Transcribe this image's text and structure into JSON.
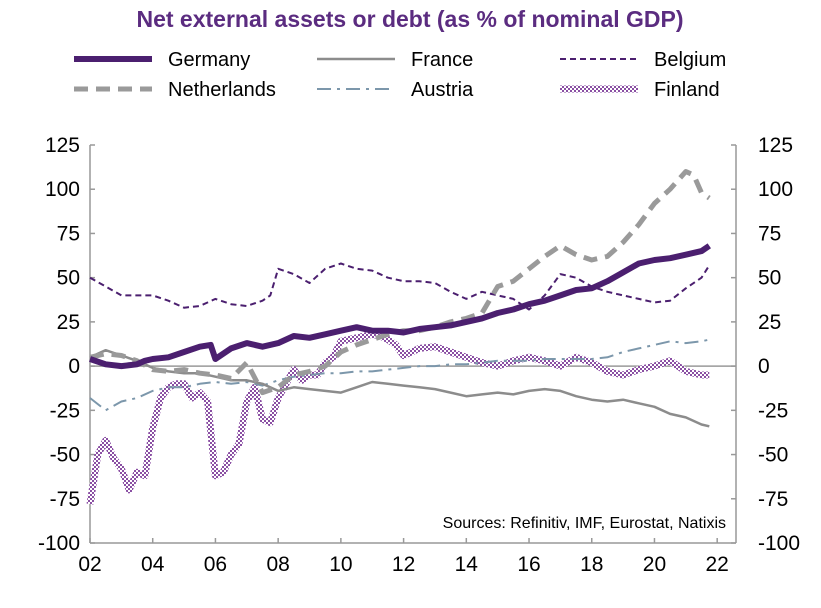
{
  "chart_data": {
    "type": "line",
    "title": "Net external assets or debt (as % of nominal GDP)",
    "source_note": "Sources: Refinitiv, IMF, Eurostat, Natixis",
    "xlim": [
      2002,
      2022.6
    ],
    "ylim": [
      -100,
      125
    ],
    "x_ticks": [
      "02",
      "04",
      "06",
      "08",
      "10",
      "12",
      "14",
      "16",
      "18",
      "20",
      "22"
    ],
    "y_ticks": [
      "125",
      "100",
      "75",
      "50",
      "25",
      "0",
      "-25",
      "-50",
      "-75",
      "-100"
    ],
    "grid": false,
    "legend_position": "top",
    "colors": {
      "title": "#5b2c80",
      "germany": "#4b1f6f",
      "france": "#8c8c8c",
      "belgium": "#4b1f6f",
      "netherlands": "#9a9a9a",
      "austria": "#7c97ab",
      "finland": "#b583c9",
      "axis": "#999999"
    },
    "series": [
      {
        "name": "Germany",
        "style": "thick-solid",
        "x": [
          2002.0,
          2002.5,
          2003.0,
          2003.5,
          2003.75,
          2004.0,
          2004.5,
          2005.0,
          2005.5,
          2005.85,
          2006.0,
          2006.5,
          2007.0,
          2007.5,
          2008.0,
          2008.5,
          2009.0,
          2009.5,
          2010.0,
          2010.5,
          2011.0,
          2011.5,
          2012.0,
          2012.5,
          2013.0,
          2013.5,
          2014.0,
          2014.5,
          2015.0,
          2015.5,
          2016.0,
          2016.5,
          2017.0,
          2017.5,
          2018.0,
          2018.5,
          2019.0,
          2019.5,
          2020.0,
          2020.5,
          2021.0,
          2021.5,
          2021.75
        ],
        "y": [
          4,
          1,
          0,
          1,
          3,
          4,
          5,
          8,
          11,
          12,
          4,
          10,
          13,
          11,
          13,
          17,
          16,
          18,
          20,
          22,
          20,
          20,
          19,
          21,
          22,
          23,
          25,
          27,
          30,
          32,
          35,
          37,
          40,
          43,
          44,
          48,
          53,
          58,
          60,
          61,
          63,
          65,
          68
        ]
      },
      {
        "name": "France",
        "style": "thin-solid",
        "x": [
          2002.0,
          2002.5,
          2003.0,
          2003.5,
          2004.0,
          2004.5,
          2005.0,
          2005.5,
          2006.0,
          2006.5,
          2007.0,
          2007.5,
          2008.0,
          2008.5,
          2009.0,
          2009.5,
          2010.0,
          2010.5,
          2011.0,
          2011.5,
          2012.0,
          2012.5,
          2013.0,
          2013.5,
          2014.0,
          2014.5,
          2015.0,
          2015.5,
          2016.0,
          2016.5,
          2017.0,
          2017.5,
          2018.0,
          2018.5,
          2019.0,
          2019.5,
          2020.0,
          2020.5,
          2021.0,
          2021.5,
          2021.75
        ],
        "y": [
          5,
          9,
          6,
          3,
          -1,
          -3,
          -4,
          -4,
          -6,
          -8,
          -8,
          -10,
          -14,
          -12,
          -13,
          -14,
          -15,
          -12,
          -9,
          -10,
          -11,
          -12,
          -13,
          -15,
          -17,
          -16,
          -15,
          -16,
          -14,
          -13,
          -14,
          -17,
          -19,
          -20,
          -19,
          -21,
          -23,
          -27,
          -29,
          -33,
          -34
        ]
      },
      {
        "name": "Belgium",
        "style": "dashed",
        "x": [
          2002.0,
          2002.5,
          2003.0,
          2003.5,
          2004.0,
          2004.5,
          2005.0,
          2005.5,
          2006.0,
          2006.5,
          2007.0,
          2007.5,
          2007.75,
          2008.0,
          2008.5,
          2009.0,
          2009.5,
          2010.0,
          2010.5,
          2011.0,
          2011.5,
          2012.0,
          2012.5,
          2013.0,
          2013.5,
          2014.0,
          2014.5,
          2015.0,
          2015.5,
          2016.0,
          2016.5,
          2017.0,
          2017.5,
          2018.0,
          2018.5,
          2019.0,
          2019.5,
          2020.0,
          2020.5,
          2021.0,
          2021.5,
          2021.75
        ],
        "y": [
          50,
          45,
          40,
          40,
          40,
          37,
          33,
          34,
          38,
          35,
          34,
          37,
          40,
          55,
          52,
          47,
          55,
          58,
          55,
          54,
          50,
          48,
          48,
          47,
          42,
          38,
          42,
          40,
          38,
          32,
          40,
          52,
          50,
          45,
          42,
          40,
          38,
          36,
          37,
          44,
          50,
          57
        ]
      },
      {
        "name": "Netherlands",
        "style": "thick-dashed",
        "x": [
          2002.0,
          2002.5,
          2003.0,
          2003.5,
          2004.0,
          2004.5,
          2005.0,
          2005.5,
          2006.0,
          2006.5,
          2007.0,
          2007.5,
          2008.0,
          2008.5,
          2009.0,
          2009.5,
          2010.0,
          2010.5,
          2011.0,
          2011.5,
          2012.0,
          2012.5,
          2013.0,
          2013.5,
          2014.0,
          2014.5,
          2015.0,
          2015.5,
          2016.0,
          2016.5,
          2017.0,
          2017.5,
          2018.0,
          2018.5,
          2019.0,
          2019.5,
          2020.0,
          2020.5,
          2021.0,
          2021.25,
          2021.5,
          2021.75
        ],
        "y": [
          5,
          7,
          6,
          3,
          -2,
          -3,
          -2,
          -4,
          -5,
          -7,
          2,
          -15,
          -12,
          -5,
          -3,
          0,
          8,
          12,
          15,
          18,
          20,
          20,
          22,
          25,
          27,
          30,
          45,
          48,
          55,
          62,
          68,
          63,
          60,
          62,
          70,
          80,
          92,
          100,
          110,
          108,
          98,
          95
        ]
      },
      {
        "name": "Austria",
        "style": "dash-dot",
        "x": [
          2002.0,
          2002.5,
          2003.0,
          2003.5,
          2004.0,
          2004.5,
          2005.0,
          2005.5,
          2006.0,
          2006.5,
          2007.0,
          2007.5,
          2008.0,
          2008.5,
          2009.0,
          2009.5,
          2010.0,
          2010.5,
          2011.0,
          2011.5,
          2012.0,
          2012.5,
          2013.0,
          2013.5,
          2014.0,
          2014.5,
          2015.0,
          2015.5,
          2016.0,
          2016.5,
          2017.0,
          2017.5,
          2018.0,
          2018.5,
          2019.0,
          2019.5,
          2020.0,
          2020.5,
          2021.0,
          2021.5,
          2021.75
        ],
        "y": [
          -18,
          -25,
          -20,
          -18,
          -14,
          -12,
          -12,
          -10,
          -9,
          -10,
          -9,
          -11,
          -8,
          -6,
          -5,
          -4,
          -4,
          -3,
          -3,
          -2,
          -1,
          0,
          0,
          1,
          1,
          2,
          3,
          3,
          3,
          4,
          4,
          4,
          4,
          5,
          8,
          10,
          12,
          14,
          13,
          14,
          15
        ]
      },
      {
        "name": "Finland",
        "style": "patterned",
        "x": [
          2002.0,
          2002.25,
          2002.5,
          2002.75,
          2003.0,
          2003.25,
          2003.5,
          2003.75,
          2004.0,
          2004.25,
          2004.5,
          2004.75,
          2005.0,
          2005.25,
          2005.5,
          2005.75,
          2006.0,
          2006.25,
          2006.5,
          2006.75,
          2007.0,
          2007.25,
          2007.5,
          2007.75,
          2008.0,
          2008.25,
          2008.5,
          2008.75,
          2009.0,
          2009.25,
          2009.5,
          2009.75,
          2010.0,
          2010.25,
          2010.5,
          2010.75,
          2011.0,
          2011.25,
          2011.5,
          2011.75,
          2012.0,
          2012.5,
          2013.0,
          2013.5,
          2014.0,
          2014.5,
          2015.0,
          2015.5,
          2016.0,
          2016.5,
          2017.0,
          2017.5,
          2018.0,
          2018.5,
          2019.0,
          2019.5,
          2020.0,
          2020.5,
          2021.0,
          2021.5,
          2021.75
        ],
        "y": [
          -78,
          -50,
          -42,
          -52,
          -58,
          -70,
          -60,
          -62,
          -35,
          -18,
          -12,
          -10,
          -10,
          -18,
          -15,
          -20,
          -62,
          -60,
          -50,
          -44,
          -20,
          -12,
          -30,
          -32,
          -18,
          -10,
          -2,
          -8,
          -5,
          -5,
          2,
          5,
          14,
          15,
          16,
          17,
          18,
          17,
          15,
          12,
          6,
          10,
          11,
          8,
          5,
          2,
          0,
          3,
          5,
          3,
          0,
          5,
          2,
          -3,
          -5,
          -2,
          0,
          3,
          -3,
          -5,
          -5
        ]
      }
    ]
  }
}
